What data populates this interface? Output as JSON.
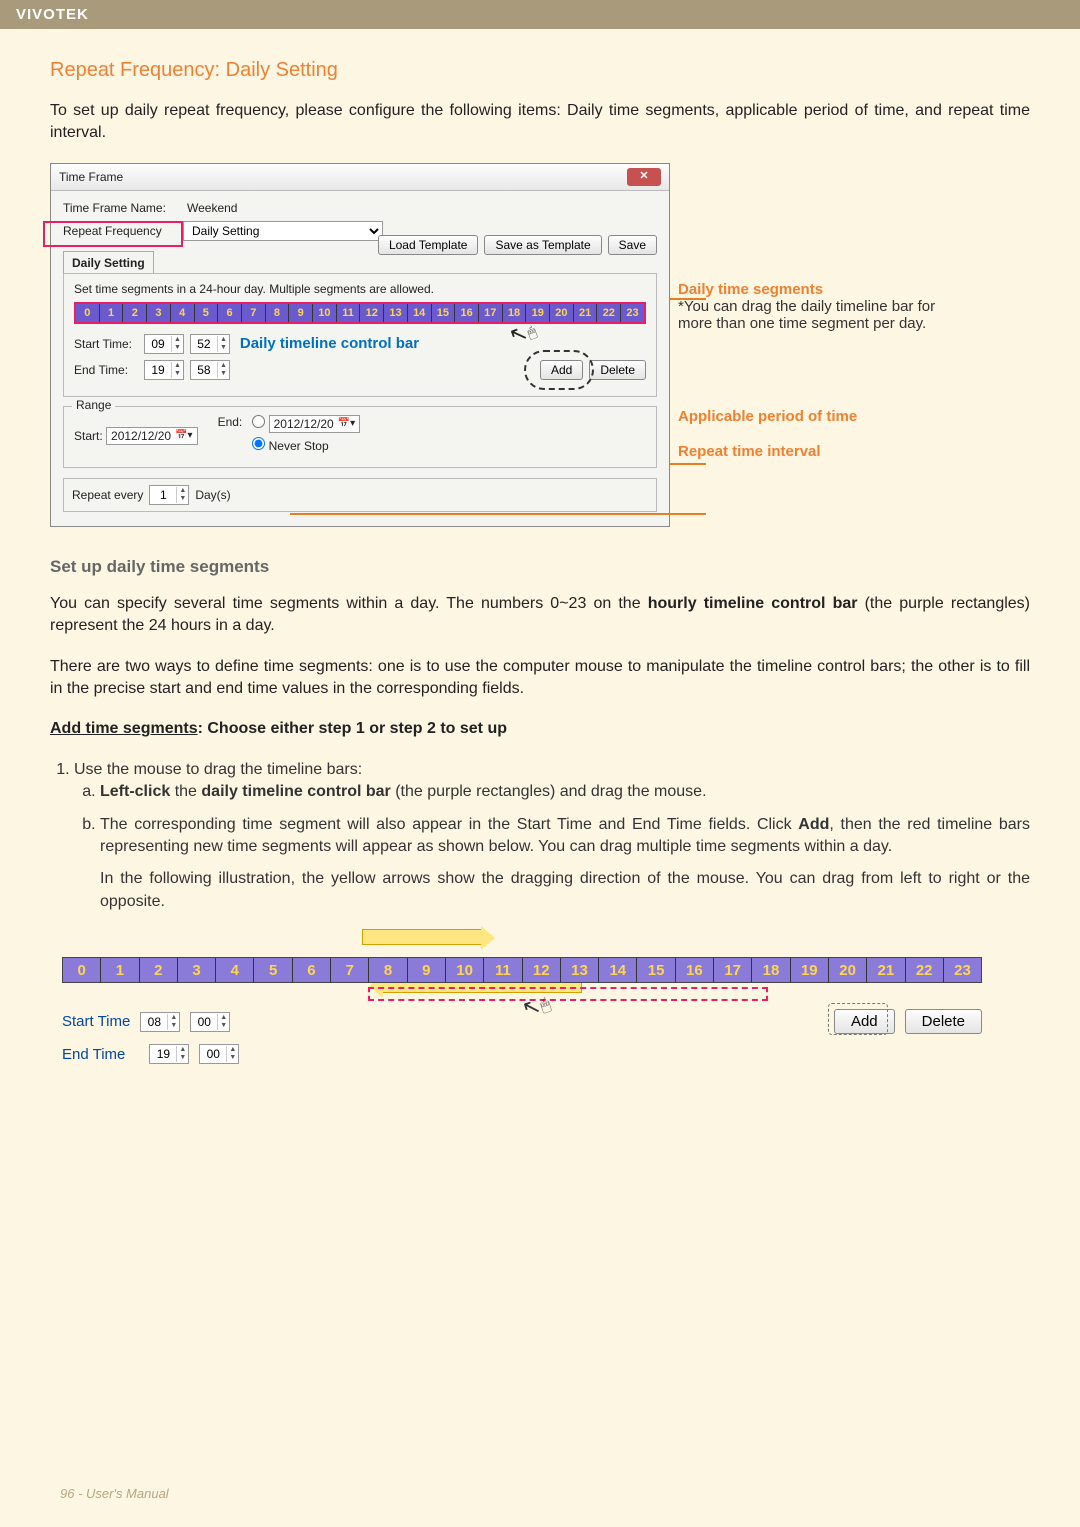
{
  "brand": "VIVOTEK",
  "section_title": "Repeat Frequency: Daily Setting",
  "intro": "To set up daily repeat frequency, please configure the following items: Daily time segments, applicable period of time, and repeat time interval.",
  "dialog": {
    "title": "Time Frame",
    "close_glyph": "✕",
    "name_label": "Time Frame Name:",
    "name_value": "Weekend",
    "freq_label": "Repeat Frequency",
    "freq_value": "Daily Setting",
    "load_template": "Load Template",
    "save_template": "Save as Template",
    "save": "Save",
    "tab": "Daily Setting",
    "hint": "Set time segments in a 24-hour day. Multiple segments are allowed.",
    "hours": [
      "0",
      "1",
      "2",
      "3",
      "4",
      "5",
      "6",
      "7",
      "8",
      "9",
      "10",
      "11",
      "12",
      "13",
      "14",
      "15",
      "16",
      "17",
      "18",
      "19",
      "20",
      "21",
      "22",
      "23"
    ],
    "start_label": "Start Time:",
    "start_hh": "09",
    "start_mm": "52",
    "end_label": "End Time:",
    "end_hh": "19",
    "end_mm": "58",
    "inline_timeline_label": "Daily timeline control bar",
    "add": "Add",
    "delete": "Delete",
    "range_title": "Range",
    "range_start_label": "Start:",
    "range_start_date": "2012/12/20",
    "range_end_label": "End:",
    "range_end_date": "2012/12/20",
    "never_stop": "Never Stop",
    "repeat_every": "Repeat every",
    "repeat_value": "1",
    "repeat_unit": "Day(s)"
  },
  "annotations": {
    "seg_title": "Daily time segments",
    "seg_note": "*You can drag the daily timeline bar for more than one time segment per day.",
    "period_title": "Applicable period of time",
    "interval_title": "Repeat time interval"
  },
  "subheading": "Set up daily time segments",
  "para2": "You can specify several time segments within a day. The numbers 0~23 on the ",
  "para2_bold": "hourly timeline control bar",
  "para2_after": " (the purple rectangles) represent the 24 hours in a day.",
  "para3": "There are two ways to define time segments: one is to use the computer mouse to manipulate the timeline control bars; the other is to fill in the precise start and end time values in the corresponding fields.",
  "step_head_u": "Add time segments",
  "step_head_rest": ": Choose either step 1 or step 2 to set up",
  "step1": "Use the mouse to drag the timeline bars:",
  "step1a_pre": "Left-click",
  "step1a_mid": " the ",
  "step1a_bold": "daily timeline control bar",
  "step1a_post": " (the purple rectangles) and drag the mouse.",
  "step1b": "The corresponding time segment will also appear in the Start Time and End Time fields. Click ",
  "step1b_bold": "Add",
  "step1b_post": ", then the red timeline bars representing new time segments will appear as shown below. You can drag multiple time segments within a day.",
  "step1b_extra": "In the following illustration, the yellow arrows show the dragging direction of the mouse. You can drag from left to right or the opposite.",
  "fig2": {
    "hours": [
      "0",
      "1",
      "2",
      "3",
      "4",
      "5",
      "6",
      "7",
      "8",
      "9",
      "10",
      "11",
      "12",
      "13",
      "14",
      "15",
      "16",
      "17",
      "18",
      "19",
      "20",
      "21",
      "22",
      "23"
    ],
    "start_label": "Start Time",
    "start_hh": "08",
    "start_mm": "00",
    "end_label": "End Time",
    "end_hh": "19",
    "end_mm": "00",
    "add": "Add",
    "delete": "Delete"
  },
  "footer": "96 - User's Manual",
  "colors": {
    "accent": "#f08030",
    "timeline_bg": "#6a5acd",
    "timeline_text": "#ffd54f",
    "callout": "#0070c0"
  }
}
